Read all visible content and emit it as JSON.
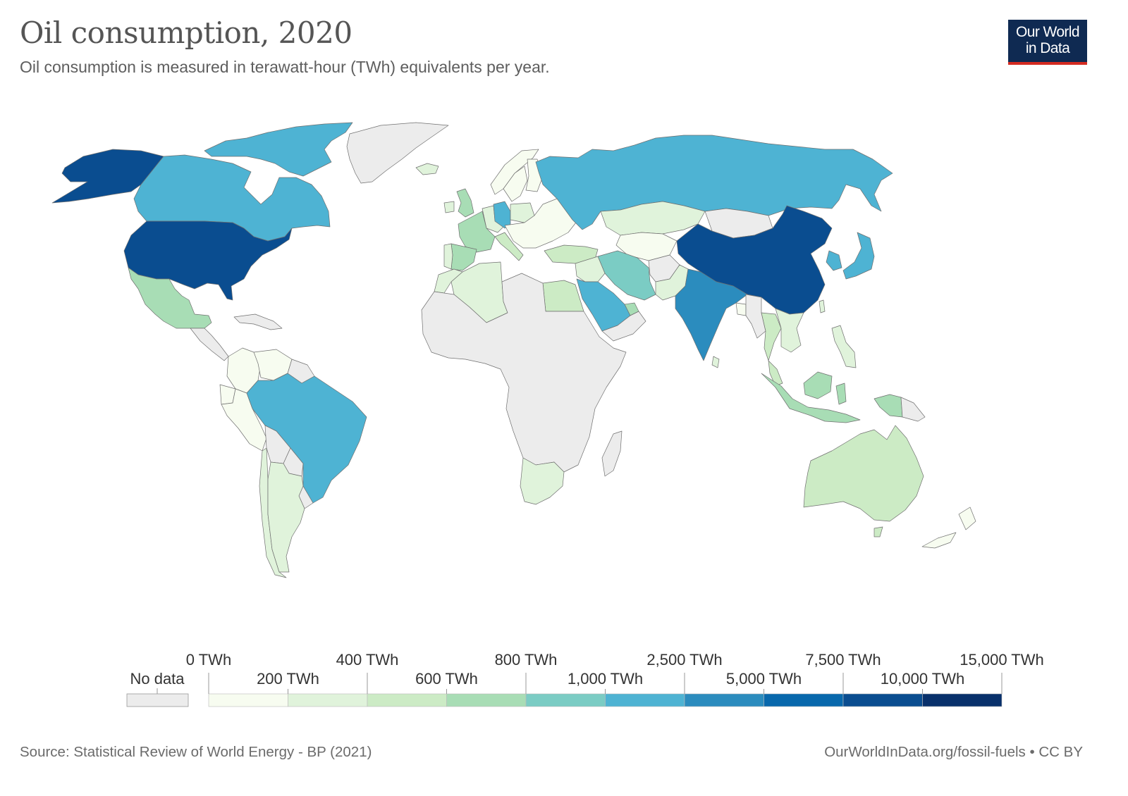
{
  "header": {
    "title": "Oil consumption, 2020",
    "subtitle": "Oil consumption is measured in terawatt-hour (TWh) equivalents per year.",
    "logo_line1": "Our World",
    "logo_line2": "in Data"
  },
  "legend": {
    "no_data_label": "No data",
    "no_data_color": "#ececec",
    "bins": [
      {
        "label": "0 TWh",
        "color": "#f7fcf0"
      },
      {
        "label": "200 TWh",
        "color": "#e0f3db"
      },
      {
        "label": "400 TWh",
        "color": "#ccebc5"
      },
      {
        "label": "600 TWh",
        "color": "#a8ddb5"
      },
      {
        "label": "800 TWh",
        "color": "#7bccc4"
      },
      {
        "label": "1,000 TWh",
        "color": "#4eb3d3"
      },
      {
        "label": "2,500 TWh",
        "color": "#2b8cbe"
      },
      {
        "label": "5,000 TWh",
        "color": "#0868ac"
      },
      {
        "label": "7,500 TWh",
        "color": "#0a4d90"
      },
      {
        "label": "10,000 TWh",
        "color": "#08306b"
      },
      {
        "label": "15,000 TWh"
      }
    ]
  },
  "regions": [
    {
      "name": "Alaska (United States)",
      "color": "#0a4d90"
    },
    {
      "name": "Canada",
      "color": "#4eb3d3"
    },
    {
      "name": "Canadian Arctic Islands",
      "color": "#4eb3d3"
    },
    {
      "name": "Greenland",
      "color": "#ececec"
    },
    {
      "name": "Iceland",
      "color": "#e0f3db"
    },
    {
      "name": "United States",
      "color": "#0a4d90"
    },
    {
      "name": "Mexico",
      "color": "#a8ddb5"
    },
    {
      "name": "Central America",
      "color": "#ececec"
    },
    {
      "name": "Caribbean",
      "color": "#ececec"
    },
    {
      "name": "Colombia",
      "color": "#f7fcf0"
    },
    {
      "name": "Venezuela",
      "color": "#f7fcf0"
    },
    {
      "name": "Guianas",
      "color": "#ececec"
    },
    {
      "name": "Ecuador",
      "color": "#f7fcf0"
    },
    {
      "name": "Peru",
      "color": "#f7fcf0"
    },
    {
      "name": "Brazil",
      "color": "#4eb3d3"
    },
    {
      "name": "Bolivia",
      "color": "#ececec"
    },
    {
      "name": "Paraguay",
      "color": "#ececec"
    },
    {
      "name": "Uruguay",
      "color": "#ececec"
    },
    {
      "name": "Chile",
      "color": "#e0f3db"
    },
    {
      "name": "Argentina",
      "color": "#e0f3db"
    },
    {
      "name": "United Kingdom",
      "color": "#a8ddb5"
    },
    {
      "name": "Ireland",
      "color": "#e0f3db"
    },
    {
      "name": "Norway",
      "color": "#f7fcf0"
    },
    {
      "name": "Sweden",
      "color": "#f7fcf0"
    },
    {
      "name": "Finland",
      "color": "#f7fcf0"
    },
    {
      "name": "Western Europe (small)",
      "color": "#e0f3db"
    },
    {
      "name": "France",
      "color": "#a8ddb5"
    },
    {
      "name": "Spain",
      "color": "#a8ddb5"
    },
    {
      "name": "Portugal",
      "color": "#e0f3db"
    },
    {
      "name": "Germany",
      "color": "#4eb3d3"
    },
    {
      "name": "Poland",
      "color": "#e0f3db"
    },
    {
      "name": "Italy",
      "color": "#ccebc5"
    },
    {
      "name": "Eastern Europe",
      "color": "#f7fcf0"
    },
    {
      "name": "Turkey",
      "color": "#ccebc5"
    },
    {
      "name": "Russia",
      "color": "#4eb3d3"
    },
    {
      "name": "Kazakhstan",
      "color": "#e0f3db"
    },
    {
      "name": "Central Asia",
      "color": "#f7fcf0"
    },
    {
      "name": "Mongolia",
      "color": "#ececec"
    },
    {
      "name": "China",
      "color": "#0a4d90"
    },
    {
      "name": "Korea",
      "color": "#4eb3d3"
    },
    {
      "name": "Japan",
      "color": "#4eb3d3"
    },
    {
      "name": "Taiwan",
      "color": "#e0f3db"
    },
    {
      "name": "Iran",
      "color": "#7bccc4"
    },
    {
      "name": "Iraq / Levant",
      "color": "#e0f3db"
    },
    {
      "name": "Afghanistan",
      "color": "#ececec"
    },
    {
      "name": "Pakistan",
      "color": "#e0f3db"
    },
    {
      "name": "Saudi Arabia",
      "color": "#4eb3d3"
    },
    {
      "name": "Gulf states",
      "color": "#a8ddb5"
    },
    {
      "name": "Yemen and Oman",
      "color": "#ececec"
    },
    {
      "name": "India",
      "color": "#2b8cbe"
    },
    {
      "name": "Sri Lanka",
      "color": "#e0f3db"
    },
    {
      "name": "Bangladesh",
      "color": "#f7fcf0"
    },
    {
      "name": "Myanmar",
      "color": "#ececec"
    },
    {
      "name": "Thailand",
      "color": "#ccebc5"
    },
    {
      "name": "Indochina",
      "color": "#e0f3db"
    },
    {
      "name": "Malaysia",
      "color": "#ccebc5"
    },
    {
      "name": "Indonesia",
      "color": "#a8ddb5"
    },
    {
      "name": "Philippines",
      "color": "#e0f3db"
    },
    {
      "name": "Papua New Guinea",
      "color": "#ececec"
    },
    {
      "name": "Australia",
      "color": "#ccebc5"
    },
    {
      "name": "New Zealand",
      "color": "#f7fcf0"
    },
    {
      "name": "Algeria",
      "color": "#e0f3db"
    },
    {
      "name": "Morocco",
      "color": "#e0f3db"
    },
    {
      "name": "Egypt",
      "color": "#ccebc5"
    },
    {
      "name": "Africa (no data)",
      "color": "#ececec"
    },
    {
      "name": "South Africa",
      "color": "#e0f3db"
    },
    {
      "name": "Madagascar",
      "color": "#ececec"
    }
  ],
  "footer": {
    "source": "Source: Statistical Review of World Energy - BP (2021)",
    "credit": "OurWorldInData.org/fossil-fuels • CC BY"
  }
}
